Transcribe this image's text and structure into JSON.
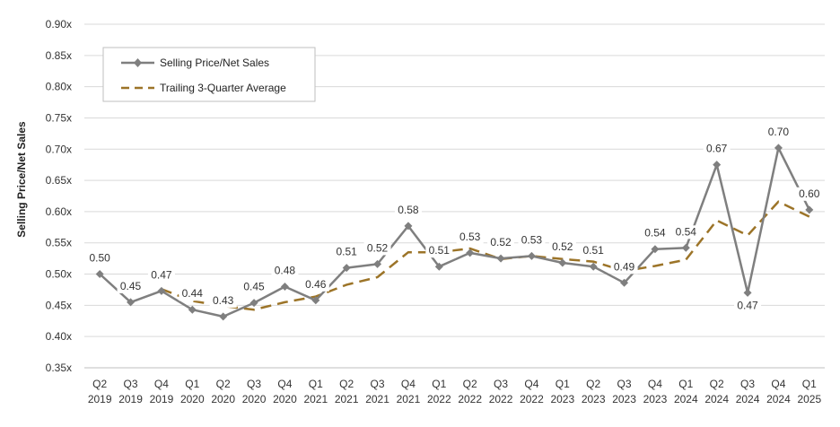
{
  "chart_data": {
    "type": "line",
    "ylabel": "Selling Price/Net Sales",
    "ylim": [
      0.35,
      0.9
    ],
    "ytick_step": 0.05,
    "ytick_suffix": "x",
    "grid": true,
    "legend_position": "top-left",
    "categories": [
      [
        "Q2",
        "2019"
      ],
      [
        "Q3",
        "2019"
      ],
      [
        "Q4",
        "2019"
      ],
      [
        "Q1",
        "2020"
      ],
      [
        "Q2",
        "2020"
      ],
      [
        "Q3",
        "2020"
      ],
      [
        "Q4",
        "2020"
      ],
      [
        "Q1",
        "2021"
      ],
      [
        "Q2",
        "2021"
      ],
      [
        "Q3",
        "2021"
      ],
      [
        "Q4",
        "2021"
      ],
      [
        "Q1",
        "2022"
      ],
      [
        "Q2",
        "2022"
      ],
      [
        "Q3",
        "2022"
      ],
      [
        "Q4",
        "2022"
      ],
      [
        "Q1",
        "2023"
      ],
      [
        "Q2",
        "2023"
      ],
      [
        "Q3",
        "2023"
      ],
      [
        "Q4",
        "2023"
      ],
      [
        "Q1",
        "2024"
      ],
      [
        "Q2",
        "2024"
      ],
      [
        "Q3",
        "2024"
      ],
      [
        "Q4",
        "2024"
      ],
      [
        "Q1",
        "2025"
      ]
    ],
    "series": [
      {
        "name": "Selling Price/Net Sales",
        "color": "#7f7f7f",
        "marker": "diamond",
        "values": [
          0.5,
          0.455,
          0.473,
          0.443,
          0.432,
          0.454,
          0.48,
          0.458,
          0.51,
          0.516,
          0.577,
          0.512,
          0.534,
          0.525,
          0.529,
          0.518,
          0.512,
          0.486,
          0.54,
          0.542,
          0.675,
          0.47,
          0.702,
          0.603
        ],
        "labels": [
          "0.50",
          "0.45",
          "0.47",
          "0.44",
          "0.43",
          "0.45",
          "0.48",
          "0.46",
          "0.51",
          "0.52",
          "0.58",
          "0.51",
          "0.53",
          "0.52",
          "0.53",
          "0.52",
          "0.51",
          "0.49",
          "0.54",
          "0.54",
          "0.67",
          "0.47",
          "0.70",
          "0.60"
        ]
      },
      {
        "name": "Trailing 3-Quarter Average",
        "color": "#9c7428",
        "dashed": true,
        "start_index": 2,
        "values": [
          null,
          null,
          0.476,
          0.457,
          0.449,
          0.443,
          0.455,
          0.464,
          0.483,
          0.495,
          0.535,
          0.535,
          0.541,
          0.524,
          0.529,
          0.524,
          0.52,
          0.505,
          0.513,
          0.523,
          0.586,
          0.562,
          0.616,
          0.592
        ]
      }
    ]
  }
}
